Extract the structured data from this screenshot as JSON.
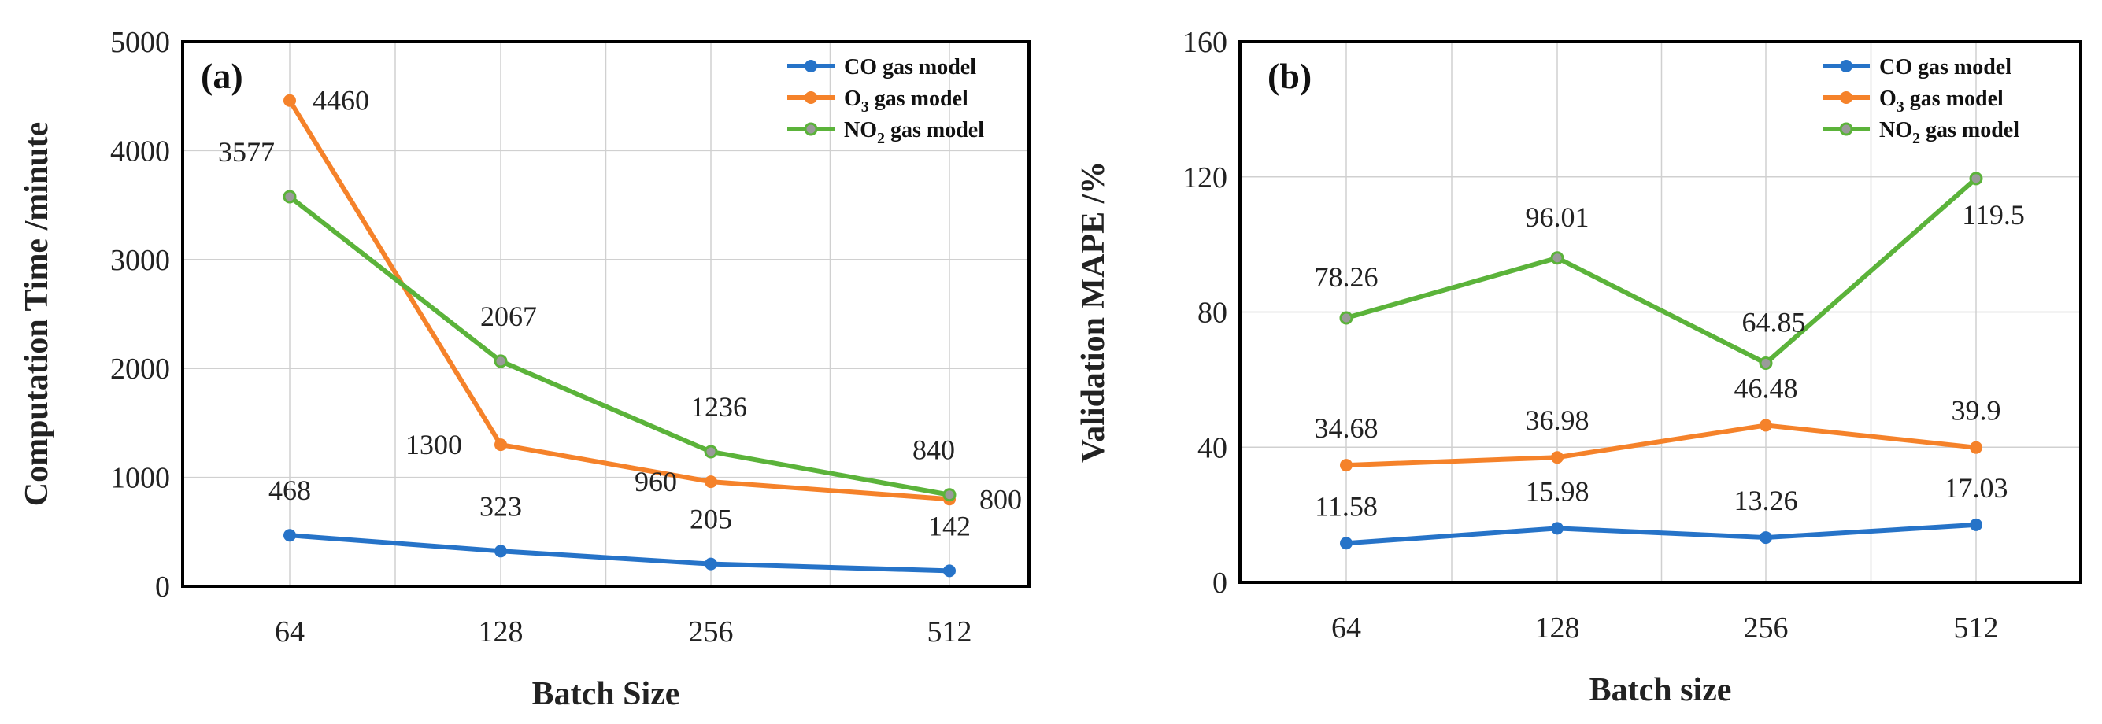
{
  "chart_data": [
    {
      "type": "line",
      "panel_label": "(a)",
      "categories": [
        "64",
        "128",
        "256",
        "512"
      ],
      "xlabel": "Batch Size",
      "ylabel": "Computation Time /minute",
      "ylim": [
        0,
        5000
      ],
      "yticks": [
        "0",
        "1000",
        "2000",
        "3000",
        "4000",
        "5000"
      ],
      "grid": true,
      "legend_position": "top-right",
      "series": [
        {
          "name": "CO gas model",
          "name_main": "CO",
          "name_sub": "",
          "name_rest": " gas model",
          "color": "#2673c8",
          "values": [
            468,
            323,
            205,
            142
          ],
          "labels": [
            "468",
            "323",
            "205",
            "142"
          ],
          "label_colors": [
            "#222222",
            "#222222",
            "#222222",
            "#222222"
          ]
        },
        {
          "name": "O3 gas model",
          "name_main": "O",
          "name_sub": "3",
          "name_rest": " gas model",
          "color": "#f5822a",
          "values": [
            4460,
            1300,
            960,
            800
          ],
          "labels": [
            "4460",
            "1300",
            "960",
            "800"
          ],
          "label_colors": [
            "#222222",
            "#222222",
            "#222222",
            "#222222"
          ]
        },
        {
          "name": "NO2 gas model",
          "name_main": "NO",
          "name_sub": "2",
          "name_rest": " gas model",
          "color": "#5bb33a",
          "values": [
            3577,
            2067,
            1236,
            840
          ],
          "labels": [
            "3577",
            "2067",
            "1236",
            "840"
          ],
          "label_colors": [
            "#222222",
            "#222222",
            "#222222",
            "#222222"
          ]
        }
      ]
    },
    {
      "type": "line",
      "panel_label": "(b)",
      "categories": [
        "64",
        "128",
        "256",
        "512"
      ],
      "xlabel": "Batch size",
      "ylabel": "Validation  MAPE /%",
      "ylim": [
        0,
        160
      ],
      "yticks": [
        "0",
        "40",
        "80",
        "120",
        "160"
      ],
      "grid": true,
      "legend_position": "top-right",
      "series": [
        {
          "name": "CO gas model",
          "name_main": "CO",
          "name_sub": "",
          "name_rest": " gas model",
          "color": "#2673c8",
          "values": [
            11.58,
            15.98,
            13.26,
            17.03
          ],
          "labels": [
            "11.58",
            "15.98",
            "13.26",
            "17.03"
          ],
          "label_colors": [
            "#222222",
            "#222222",
            "#e02020",
            "#222222"
          ]
        },
        {
          "name": "O3 gas model",
          "name_main": "O",
          "name_sub": "3",
          "name_rest": " gas model",
          "color": "#f5822a",
          "values": [
            34.68,
            36.98,
            46.48,
            39.9
          ],
          "labels": [
            "34.68",
            "36.98",
            "46.48",
            "39.9"
          ],
          "label_colors": [
            "#222222",
            "#222222",
            "#222222",
            "#222222"
          ]
        },
        {
          "name": "NO2 gas model",
          "name_main": "NO",
          "name_sub": "2",
          "name_rest": " gas model",
          "color": "#5bb33a",
          "values": [
            78.26,
            96.01,
            64.85,
            119.5
          ],
          "labels": [
            "78.26",
            "96.01",
            "64.85",
            "119.5"
          ],
          "label_colors": [
            "#222222",
            "#222222",
            "#e02020",
            "#222222"
          ]
        }
      ]
    }
  ]
}
